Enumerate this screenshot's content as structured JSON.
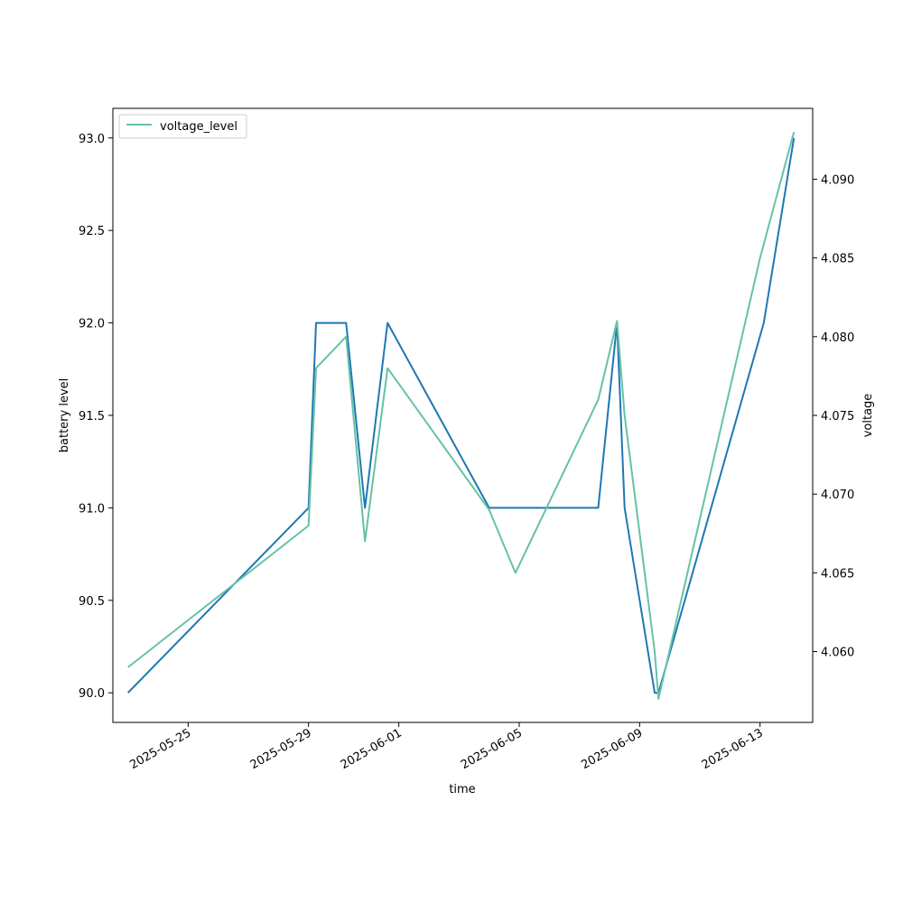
{
  "chart_data": {
    "type": "line",
    "xlabel": "time",
    "ylabel": "battery level",
    "y2label": "voltage",
    "x_dates": [
      "2025-05-23",
      "2025-05-28",
      "2025-05-28 06:00",
      "2025-05-30",
      "2025-05-30 12:00",
      "2025-05-31 06:00",
      "2025-06-04",
      "2025-06-04 21:00",
      "2025-06-07 15:00",
      "2025-06-08",
      "2025-06-08 06:00",
      "2025-06-09 12:00",
      "2025-06-09 15:00",
      "2025-06-13",
      "2025-06-14"
    ],
    "xlim": [
      "2025-05-22 12:00",
      "2025-06-14 18:00"
    ],
    "x_ticks": [
      "2025-05-25",
      "2025-05-29",
      "2025-06-01",
      "2025-06-05",
      "2025-06-09",
      "2025-06-13"
    ],
    "ylim": [
      89.84,
      93.16
    ],
    "y_ticks": [
      "90.0",
      "90.5",
      "91.0",
      "91.5",
      "92.0",
      "92.5",
      "93.0"
    ],
    "y2lim": [
      4.0555,
      4.0945
    ],
    "y2_ticks": [
      "4.060",
      "4.065",
      "4.070",
      "4.075",
      "4.080",
      "4.085",
      "4.090"
    ],
    "series": [
      {
        "axis": "left",
        "color": "#1f77b4",
        "points": [
          {
            "x": "2025-05-23",
            "y": 90.0
          },
          {
            "x": "2025-05-29 00:00",
            "y": 91.0
          },
          {
            "x": "2025-05-29 06:00",
            "y": 92.0
          },
          {
            "x": "2025-05-30 06:00",
            "y": 92.0
          },
          {
            "x": "2025-05-30 21:00",
            "y": 91.0
          },
          {
            "x": "2025-05-31 15:00",
            "y": 92.0
          },
          {
            "x": "2025-06-04 00:00",
            "y": 91.0
          },
          {
            "x": "2025-06-07 15:00",
            "y": 91.0
          },
          {
            "x": "2025-06-08 06:00",
            "y": 92.0
          },
          {
            "x": "2025-06-08 12:00",
            "y": 91.0
          },
          {
            "x": "2025-06-09 12:00",
            "y": 90.0
          },
          {
            "x": "2025-06-09 15:00",
            "y": 90.0
          },
          {
            "x": "2025-06-13 03:00",
            "y": 92.0
          },
          {
            "x": "2025-06-14 03:00",
            "y": 93.0
          }
        ]
      },
      {
        "name": "voltage_level",
        "axis": "right",
        "color": "#66c2a5",
        "points": [
          {
            "x": "2025-05-23",
            "y": 4.059
          },
          {
            "x": "2025-05-29 00:00",
            "y": 4.068
          },
          {
            "x": "2025-05-29 06:00",
            "y": 4.078
          },
          {
            "x": "2025-05-30 06:00",
            "y": 4.08
          },
          {
            "x": "2025-05-30 21:00",
            "y": 4.067
          },
          {
            "x": "2025-05-31 15:00",
            "y": 4.078
          },
          {
            "x": "2025-06-04 00:00",
            "y": 4.069
          },
          {
            "x": "2025-06-04 21:00",
            "y": 4.065
          },
          {
            "x": "2025-06-07 15:00",
            "y": 4.076
          },
          {
            "x": "2025-06-08 06:00",
            "y": 4.081
          },
          {
            "x": "2025-06-08 12:00",
            "y": 4.075
          },
          {
            "x": "2025-06-09 12:00",
            "y": 4.06
          },
          {
            "x": "2025-06-09 15:00",
            "y": 4.057
          },
          {
            "x": "2025-06-13 00:00",
            "y": 4.085
          },
          {
            "x": "2025-06-14 03:00",
            "y": 4.093
          }
        ]
      }
    ],
    "legend": {
      "position": "top-left",
      "entries": [
        "voltage_level"
      ]
    }
  }
}
